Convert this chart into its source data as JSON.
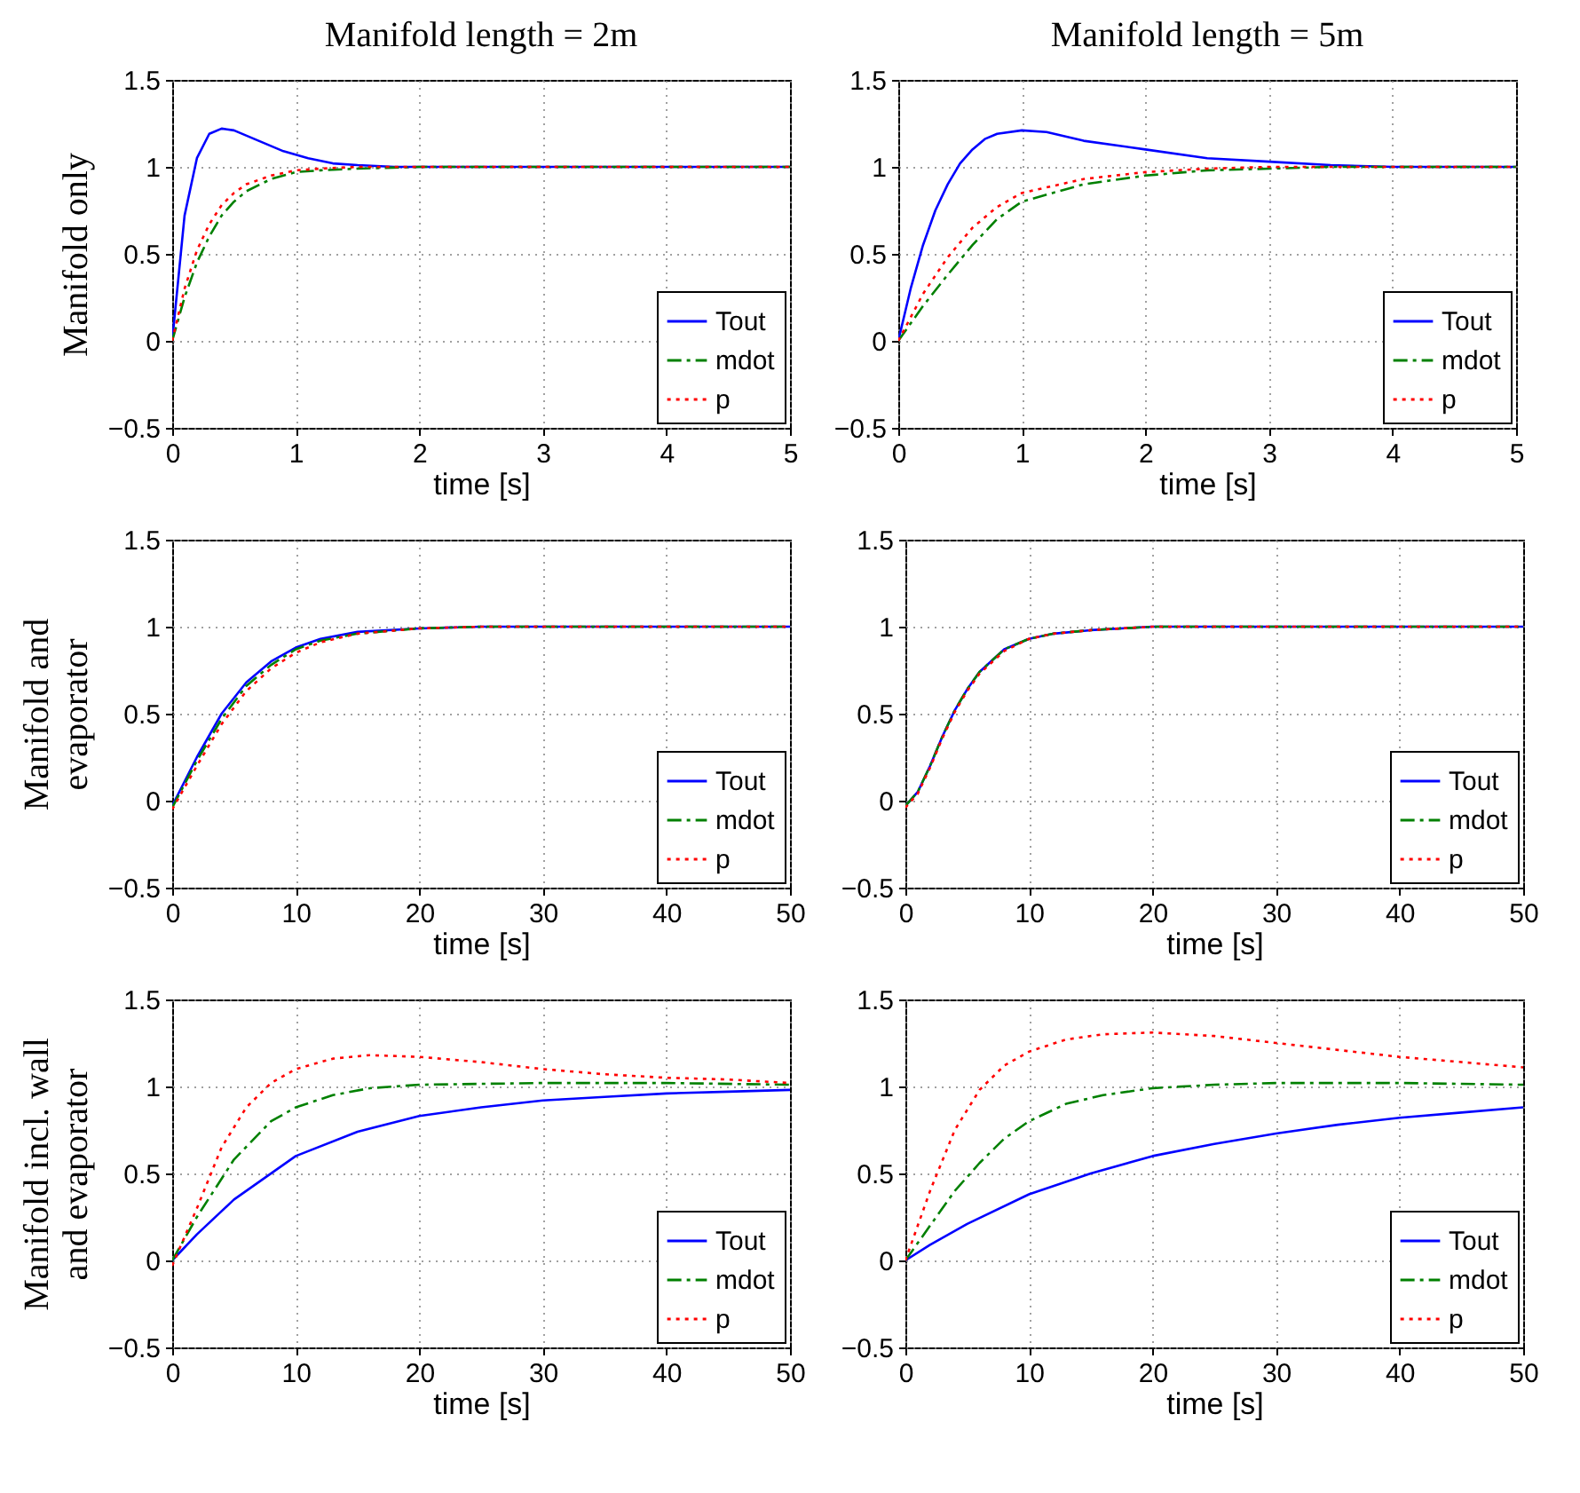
{
  "chart_data": [
    {
      "type": "line",
      "title": "Manifold length = 2m",
      "xlabel": "time [s]",
      "ylabel": "Manifold only",
      "xlim": [
        0,
        5
      ],
      "xticks": [
        0,
        1,
        2,
        3,
        4,
        5
      ],
      "ylim": [
        -0.5,
        1.5
      ],
      "yticks": [
        -0.5,
        0,
        0.5,
        1,
        1.5
      ],
      "grid": true,
      "legend": "bottom right",
      "series": [
        {
          "name": "Tout",
          "color": "#0000ff",
          "line_style": "solid",
          "x": [
            0,
            0.1,
            0.2,
            0.3,
            0.4,
            0.5,
            0.7,
            0.9,
            1.1,
            1.3,
            1.5,
            1.8,
            2,
            5
          ],
          "values": [
            0,
            0.72,
            1.05,
            1.19,
            1.22,
            1.21,
            1.15,
            1.09,
            1.05,
            1.02,
            1.01,
            1.0,
            1,
            1
          ]
        },
        {
          "name": "mdot",
          "color": "#008000",
          "line_style": "dashed",
          "x": [
            0,
            0.1,
            0.2,
            0.3,
            0.4,
            0.5,
            0.6,
            0.8,
            1.0,
            1.2,
            1.5,
            2,
            5
          ],
          "values": [
            0,
            0.25,
            0.45,
            0.6,
            0.72,
            0.8,
            0.86,
            0.93,
            0.97,
            0.98,
            0.99,
            1,
            1
          ]
        },
        {
          "name": "p",
          "color": "#ff0000",
          "line_style": "dotted",
          "x": [
            0,
            0.1,
            0.2,
            0.3,
            0.4,
            0.5,
            0.6,
            0.8,
            1.0,
            1.2,
            1.5,
            5
          ],
          "values": [
            0,
            0.3,
            0.52,
            0.67,
            0.78,
            0.85,
            0.9,
            0.95,
            0.98,
            0.99,
            1,
            1
          ]
        }
      ]
    },
    {
      "type": "line",
      "title": "Manifold length = 5m",
      "xlabel": "time [s]",
      "xlim": [
        0,
        5
      ],
      "xticks": [
        0,
        1,
        2,
        3,
        4,
        5
      ],
      "ylim": [
        -0.5,
        1.5
      ],
      "yticks": [
        -0.5,
        0,
        0.5,
        1,
        1.5
      ],
      "grid": true,
      "legend": "bottom right",
      "series": [
        {
          "name": "Tout",
          "color": "#0000ff",
          "line_style": "solid",
          "x": [
            0,
            0.1,
            0.2,
            0.3,
            0.4,
            0.5,
            0.6,
            0.7,
            0.8,
            1.0,
            1.2,
            1.5,
            2,
            2.5,
            3,
            3.5,
            4,
            5
          ],
          "values": [
            0,
            0.3,
            0.55,
            0.75,
            0.9,
            1.02,
            1.1,
            1.16,
            1.19,
            1.21,
            1.2,
            1.15,
            1.1,
            1.05,
            1.03,
            1.01,
            1.0,
            1
          ]
        },
        {
          "name": "mdot",
          "color": "#008000",
          "line_style": "dashed",
          "x": [
            0,
            0.2,
            0.4,
            0.6,
            0.8,
            1.0,
            1.5,
            2,
            2.5,
            3,
            3.5,
            5
          ],
          "values": [
            0,
            0.2,
            0.38,
            0.55,
            0.7,
            0.8,
            0.9,
            0.95,
            0.98,
            0.99,
            1,
            1
          ]
        },
        {
          "name": "p",
          "color": "#ff0000",
          "line_style": "dotted",
          "x": [
            0,
            0.2,
            0.4,
            0.6,
            0.8,
            1.0,
            1.5,
            2,
            2.5,
            3,
            5
          ],
          "values": [
            0,
            0.27,
            0.48,
            0.65,
            0.77,
            0.85,
            0.93,
            0.97,
            0.99,
            1,
            1
          ]
        }
      ]
    },
    {
      "type": "line",
      "xlabel": "time [s]",
      "ylabel": "Manifold and\nevaporator",
      "xlim": [
        0,
        50
      ],
      "xticks": [
        0,
        10,
        20,
        30,
        40,
        50
      ],
      "ylim": [
        -0.5,
        1.5
      ],
      "yticks": [
        -0.5,
        0,
        0.5,
        1,
        1.5
      ],
      "grid": true,
      "legend": "bottom right",
      "series": [
        {
          "name": "Tout",
          "color": "#0000ff",
          "line_style": "solid",
          "x": [
            0,
            2,
            4,
            6,
            8,
            10,
            12,
            15,
            20,
            25,
            50
          ],
          "values": [
            -0.03,
            0.25,
            0.5,
            0.68,
            0.8,
            0.88,
            0.93,
            0.97,
            0.99,
            1,
            1
          ]
        },
        {
          "name": "mdot",
          "color": "#008000",
          "line_style": "dashed",
          "x": [
            0,
            2,
            4,
            6,
            8,
            10,
            12,
            15,
            20,
            25,
            50
          ],
          "values": [
            -0.04,
            0.23,
            0.47,
            0.66,
            0.78,
            0.87,
            0.92,
            0.96,
            0.99,
            1,
            1
          ]
        },
        {
          "name": "p",
          "color": "#ff0000",
          "line_style": "dotted",
          "x": [
            0,
            2,
            4,
            6,
            8,
            10,
            12,
            15,
            20,
            25,
            50
          ],
          "values": [
            -0.05,
            0.2,
            0.44,
            0.63,
            0.76,
            0.85,
            0.91,
            0.96,
            0.99,
            1,
            1
          ]
        }
      ]
    },
    {
      "type": "line",
      "xlabel": "time [s]",
      "xlim": [
        0,
        50
      ],
      "xticks": [
        0,
        10,
        20,
        30,
        40,
        50
      ],
      "ylim": [
        -0.5,
        1.5
      ],
      "yticks": [
        -0.5,
        0,
        0.5,
        1,
        1.5
      ],
      "grid": true,
      "legend": "bottom right",
      "series": [
        {
          "name": "Tout",
          "color": "#0000ff",
          "line_style": "solid",
          "x": [
            0,
            1,
            2,
            3,
            4,
            5,
            6,
            8,
            10,
            12,
            15,
            20,
            50
          ],
          "values": [
            -0.03,
            0.05,
            0.2,
            0.37,
            0.52,
            0.64,
            0.74,
            0.87,
            0.93,
            0.96,
            0.98,
            1,
            1
          ]
        },
        {
          "name": "mdot",
          "color": "#008000",
          "line_style": "dashed",
          "x": [
            0,
            1,
            2,
            3,
            4,
            5,
            6,
            8,
            10,
            12,
            15,
            20,
            50
          ],
          "values": [
            -0.03,
            0.05,
            0.2,
            0.37,
            0.52,
            0.64,
            0.74,
            0.87,
            0.93,
            0.96,
            0.98,
            1,
            1
          ]
        },
        {
          "name": "p",
          "color": "#ff0000",
          "line_style": "dotted",
          "x": [
            0,
            1,
            2,
            3,
            4,
            5,
            6,
            8,
            10,
            12,
            15,
            20,
            50
          ],
          "values": [
            -0.04,
            0.04,
            0.19,
            0.36,
            0.51,
            0.63,
            0.73,
            0.86,
            0.93,
            0.96,
            0.98,
            1,
            1
          ]
        }
      ]
    },
    {
      "type": "line",
      "xlabel": "time [s]",
      "ylabel": "Manifold incl. wall\nand evaporator",
      "xlim": [
        0,
        50
      ],
      "xticks": [
        0,
        10,
        20,
        30,
        40,
        50
      ],
      "ylim": [
        -0.5,
        1.5
      ],
      "yticks": [
        -0.5,
        0,
        0.5,
        1,
        1.5
      ],
      "grid": true,
      "legend": "bottom right",
      "series": [
        {
          "name": "Tout",
          "color": "#0000ff",
          "line_style": "solid",
          "x": [
            0,
            2,
            5,
            10,
            15,
            20,
            25,
            30,
            35,
            40,
            45,
            50
          ],
          "values": [
            0,
            0.15,
            0.35,
            0.6,
            0.74,
            0.83,
            0.88,
            0.92,
            0.94,
            0.96,
            0.97,
            0.98
          ]
        },
        {
          "name": "mdot",
          "color": "#008000",
          "line_style": "dashed",
          "x": [
            0,
            2,
            5,
            8,
            10,
            13,
            16,
            20,
            30,
            40,
            50
          ],
          "values": [
            0,
            0.25,
            0.58,
            0.8,
            0.88,
            0.95,
            0.99,
            1.01,
            1.02,
            1.02,
            1.01
          ]
        },
        {
          "name": "p",
          "color": "#ff0000",
          "line_style": "dotted",
          "x": [
            0,
            2,
            4,
            6,
            8,
            10,
            13,
            16,
            20,
            25,
            30,
            35,
            40,
            45,
            50
          ],
          "values": [
            -0.03,
            0.3,
            0.65,
            0.88,
            1.02,
            1.1,
            1.16,
            1.18,
            1.17,
            1.14,
            1.1,
            1.07,
            1.05,
            1.04,
            1.02
          ]
        }
      ]
    },
    {
      "type": "line",
      "xlabel": "time [s]",
      "xlim": [
        0,
        50
      ],
      "xticks": [
        0,
        10,
        20,
        30,
        40,
        50
      ],
      "ylim": [
        -0.5,
        1.5
      ],
      "yticks": [
        -0.5,
        0,
        0.5,
        1,
        1.5
      ],
      "grid": true,
      "legend": "bottom right",
      "series": [
        {
          "name": "Tout",
          "color": "#0000ff",
          "line_style": "solid",
          "x": [
            0,
            2,
            5,
            10,
            15,
            20,
            25,
            30,
            35,
            40,
            45,
            50
          ],
          "values": [
            0,
            0.09,
            0.21,
            0.38,
            0.5,
            0.6,
            0.67,
            0.73,
            0.78,
            0.82,
            0.85,
            0.88
          ]
        },
        {
          "name": "mdot",
          "color": "#008000",
          "line_style": "dashed",
          "x": [
            0,
            2,
            4,
            6,
            8,
            10,
            13,
            16,
            20,
            25,
            30,
            40,
            50
          ],
          "values": [
            0,
            0.2,
            0.4,
            0.56,
            0.7,
            0.8,
            0.9,
            0.95,
            0.99,
            1.01,
            1.02,
            1.02,
            1.01
          ]
        },
        {
          "name": "p",
          "color": "#ff0000",
          "line_style": "dotted",
          "x": [
            0,
            2,
            4,
            6,
            8,
            10,
            13,
            16,
            20,
            25,
            30,
            35,
            40,
            45,
            50
          ],
          "values": [
            0,
            0.4,
            0.75,
            0.98,
            1.12,
            1.2,
            1.27,
            1.3,
            1.31,
            1.29,
            1.25,
            1.21,
            1.17,
            1.14,
            1.11
          ]
        }
      ]
    }
  ]
}
